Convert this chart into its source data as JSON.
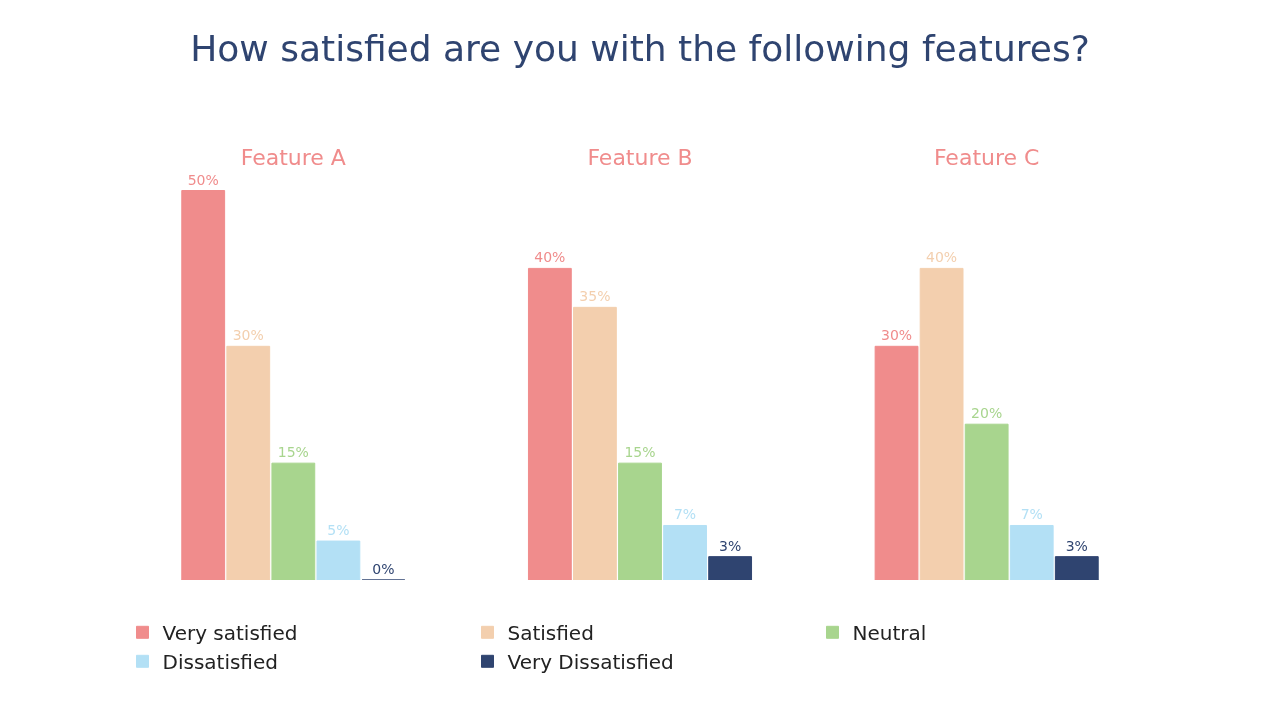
{
  "chart_data": {
    "type": "bar",
    "title": "How satisfied are you with the following features?",
    "categories": [
      "Feature A",
      "Feature B",
      "Feature C"
    ],
    "legend": "bottom",
    "series": [
      {
        "name": "Very satisfied",
        "color": "#f08c8c",
        "values": [
          50,
          40,
          30
        ],
        "value_labels": [
          "50%",
          "40%",
          "30%"
        ]
      },
      {
        "name": "Satisfied",
        "color": "#f3cfae",
        "values": [
          30,
          35,
          40
        ],
        "value_labels": [
          "30%",
          "35%",
          "40%"
        ]
      },
      {
        "name": "Neutral",
        "color": "#a8d58e",
        "values": [
          15,
          15,
          20
        ],
        "value_labels": [
          "15%",
          "15%",
          "20%"
        ]
      },
      {
        "name": "Dissatisfied",
        "color": "#b3e0f5",
        "values": [
          5,
          7,
          7
        ],
        "value_labels": [
          "5%",
          "7%",
          "7%"
        ]
      },
      {
        "name": "Very Dissatisfied",
        "color": "#2f4470",
        "values": [
          0,
          3,
          3
        ],
        "value_labels": [
          "0%",
          "3%",
          "3%"
        ]
      }
    ]
  }
}
